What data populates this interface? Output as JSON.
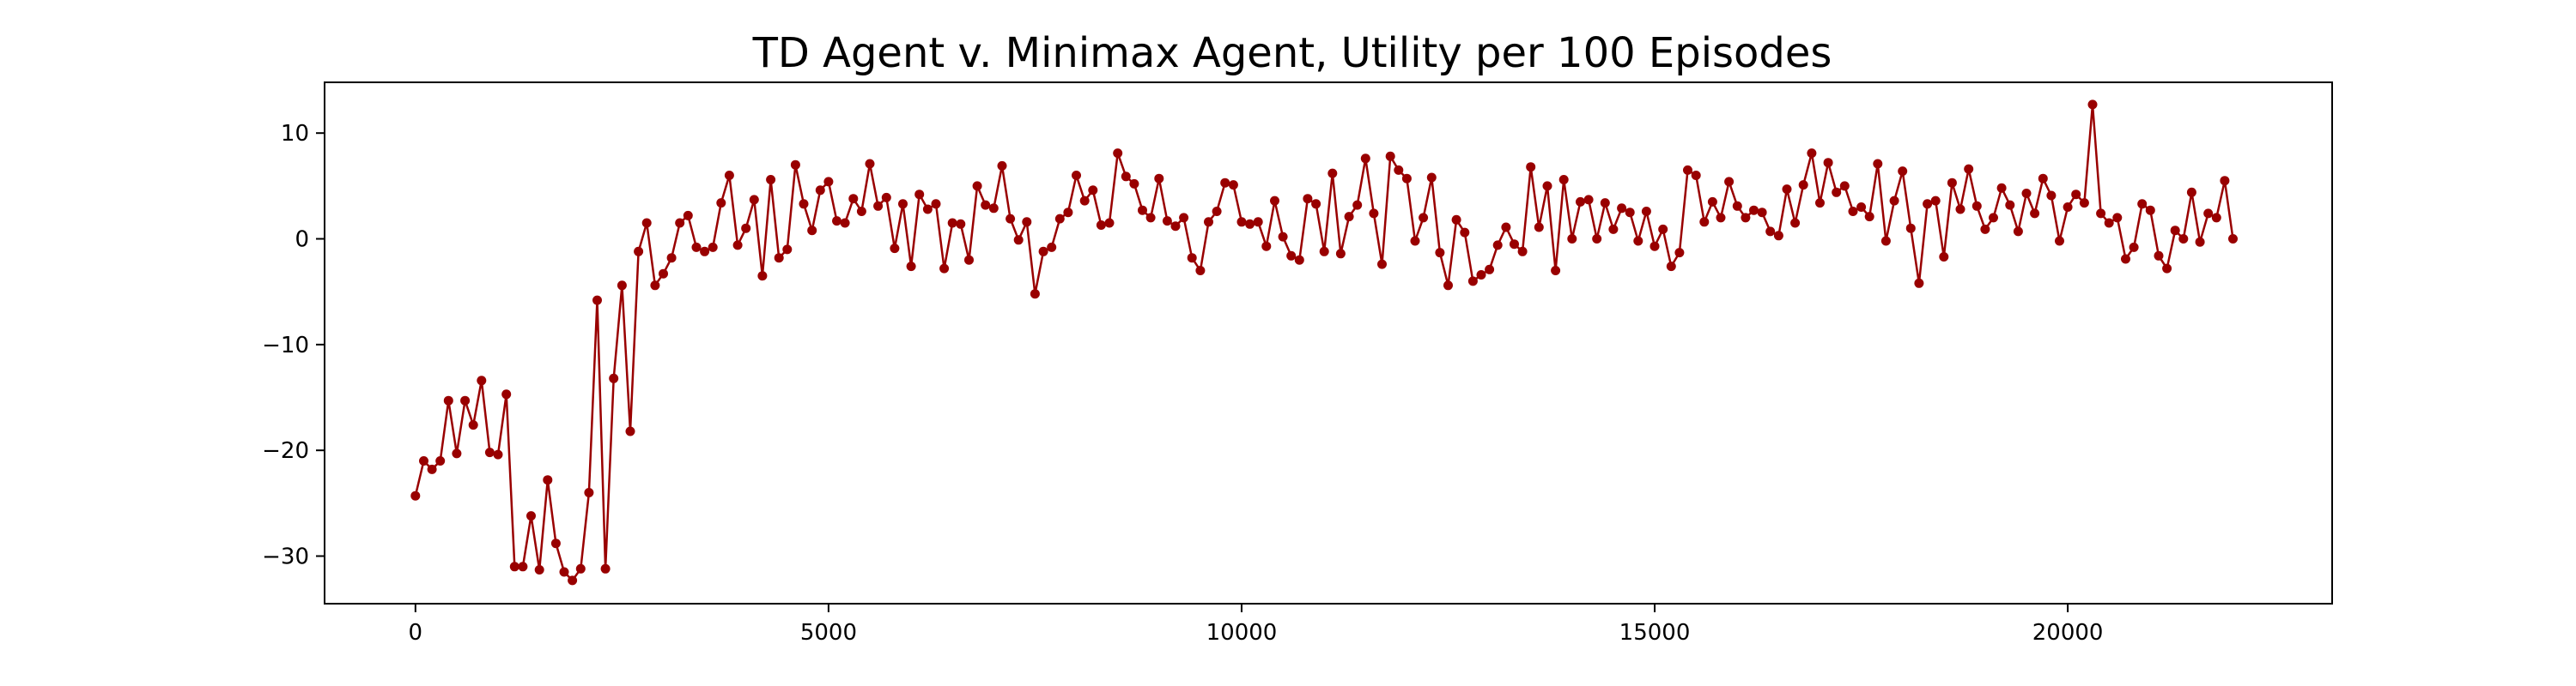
{
  "chart_data": {
    "type": "line",
    "title": "TD Agent v. Minimax Agent, Utility per 100 Episodes",
    "xlabel": "",
    "ylabel": "",
    "xlim": [
      -1100,
      23200
    ],
    "ylim": [
      -34.5,
      14.8
    ],
    "xticks": [
      0,
      5000,
      10000,
      15000,
      20000
    ],
    "yticks": [
      -30,
      -20,
      -10,
      0,
      10
    ],
    "x_step": 100,
    "x_start": 0,
    "grid": false,
    "legend": "none",
    "colors": {
      "series": "#990000",
      "axis": "#000000",
      "background": "#ffffff"
    },
    "series": [
      {
        "values": [
          -24.3,
          -21.0,
          -21.8,
          -21.0,
          -15.3,
          -20.3,
          -15.3,
          -17.6,
          -13.4,
          -20.2,
          -20.4,
          -14.7,
          -31.0,
          -31.0,
          -26.2,
          -31.3,
          -22.8,
          -28.8,
          -31.5,
          -32.3,
          -31.2,
          -24.0,
          -5.8,
          -31.2,
          -13.2,
          -4.4,
          -18.2,
          -1.2,
          1.5,
          -4.4,
          -3.3,
          -1.8,
          1.5,
          2.2,
          -0.8,
          -1.2,
          -0.8,
          3.4,
          6.0,
          -0.6,
          1.0,
          3.7,
          -3.5,
          5.6,
          -1.8,
          -1.0,
          7.0,
          3.3,
          0.8,
          4.6,
          5.4,
          1.7,
          1.5,
          3.8,
          2.6,
          7.1,
          3.1,
          3.9,
          -0.9,
          3.3,
          -2.6,
          4.2,
          2.8,
          3.3,
          -2.8,
          1.5,
          1.4,
          -2.0,
          5.0,
          3.2,
          2.9,
          6.9,
          1.9,
          -0.1,
          1.6,
          -5.2,
          -1.2,
          -0.8,
          1.9,
          2.5,
          6.0,
          3.6,
          4.6,
          1.3,
          1.5,
          8.1,
          5.9,
          5.2,
          2.7,
          2.0,
          5.7,
          1.7,
          1.2,
          2.0,
          -1.8,
          -3.0,
          1.6,
          2.6,
          5.3,
          5.1,
          1.6,
          1.4,
          1.6,
          -0.7,
          3.6,
          0.2,
          -1.6,
          -2.0,
          3.8,
          3.3,
          -1.2,
          6.2,
          -1.4,
          2.1,
          3.2,
          7.6,
          2.4,
          -2.4,
          7.8,
          6.5,
          5.7,
          -0.2,
          2.0,
          5.8,
          -1.3,
          -4.4,
          1.8,
          0.6,
          -4.0,
          -3.4,
          -2.9,
          -0.6,
          1.1,
          -0.5,
          -1.2,
          6.8,
          1.1,
          5.0,
          -3.0,
          5.6,
          0.0,
          3.5,
          3.7,
          0.0,
          3.4,
          0.9,
          2.9,
          2.5,
          -0.2,
          2.6,
          -0.7,
          0.9,
          -2.6,
          -1.3,
          6.5,
          6.0,
          1.6,
          3.5,
          2.0,
          5.4,
          3.1,
          2.0,
          2.7,
          2.5,
          0.7,
          0.3,
          4.7,
          1.5,
          5.1,
          8.1,
          3.4,
          7.2,
          4.4,
          5.0,
          2.6,
          3.0,
          2.1,
          7.1,
          -0.2,
          3.6,
          6.4,
          1.0,
          -4.2,
          3.3,
          3.6,
          -1.7,
          5.3,
          2.8,
          6.6,
          3.1,
          0.9,
          2.0,
          4.8,
          3.2,
          0.7,
          4.3,
          2.4,
          5.7,
          4.1,
          -0.2,
          3.0,
          4.2,
          3.4,
          12.7,
          2.4,
          1.5,
          2.0,
          -1.9,
          -0.8,
          3.3,
          2.7,
          -1.6,
          -2.8,
          0.8,
          0.0,
          4.4,
          -0.3,
          2.4,
          2.0,
          5.5,
          0.0
        ]
      }
    ]
  }
}
